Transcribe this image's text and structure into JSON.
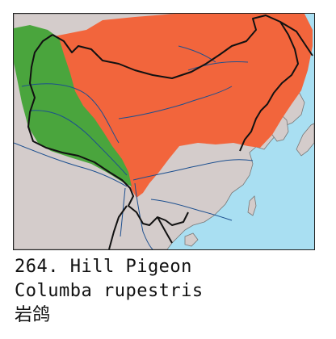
{
  "caption": {
    "number_and_common_name": "264. Hill Pigeon",
    "scientific_name": "Columba rupestris",
    "chinese_name": "岩鸽"
  },
  "map": {
    "colors": {
      "ocean": "#a9dff2",
      "land": "#d4cccb",
      "resident_range": "#f2653c",
      "other_range": "#4aa53d",
      "borders": "#111111",
      "rivers": "#1c4f8f"
    }
  }
}
